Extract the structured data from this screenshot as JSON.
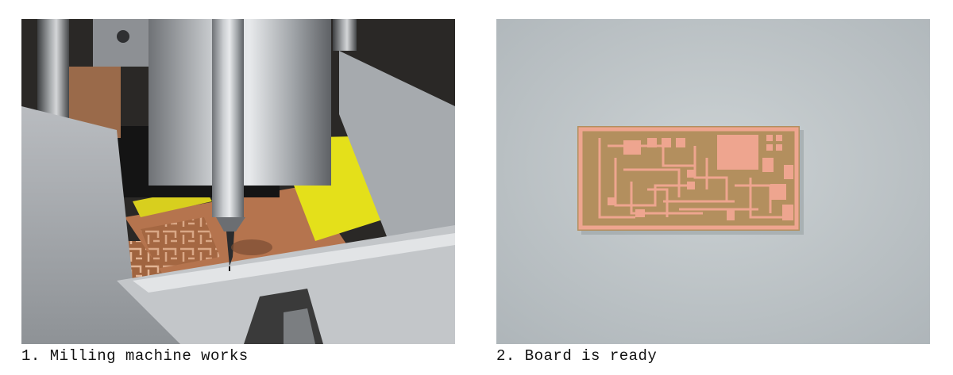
{
  "figures": [
    {
      "caption": "1. Milling machine works"
    },
    {
      "caption": "2. Board is ready"
    }
  ]
}
